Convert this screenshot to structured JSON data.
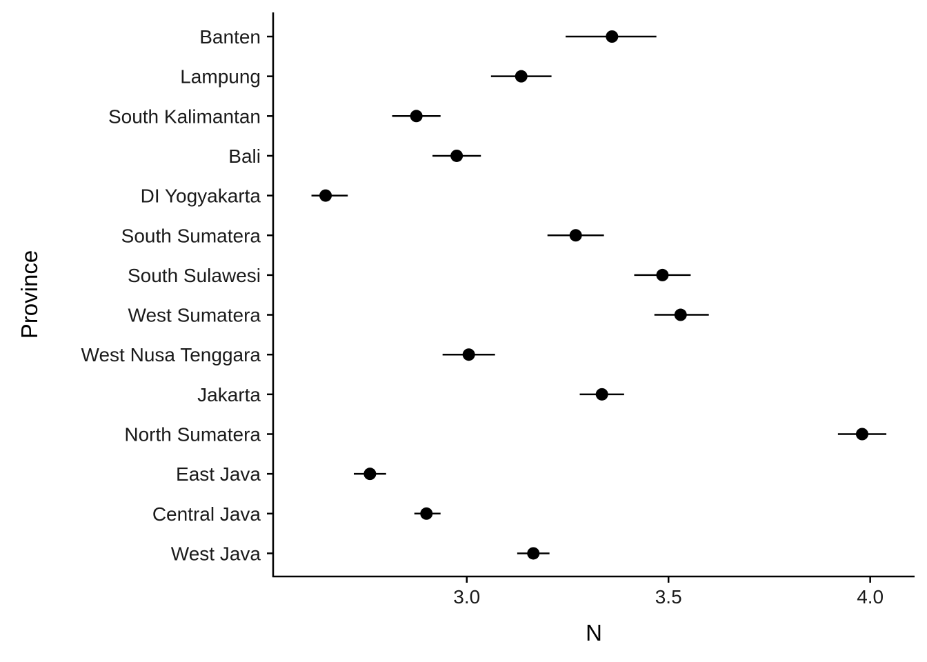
{
  "chart_data": {
    "type": "scatter",
    "variant": "point-range",
    "orientation": "horizontal",
    "title": "",
    "xlabel": "N",
    "ylabel": "Province",
    "xlim": [
      2.52,
      4.11
    ],
    "x_ticks": [
      3.0,
      3.5,
      4.0
    ],
    "x_tick_labels": [
      "3.0",
      "3.5",
      "4.0"
    ],
    "grid": false,
    "legend": "none",
    "point_color": "#000000",
    "categories": [
      "Banten",
      "Lampung",
      "South Kalimantan",
      "Bali",
      "DI Yogyakarta",
      "South Sumatera",
      "South Sulawesi",
      "West Sumatera",
      "West Nusa Tenggara",
      "Jakarta",
      "North Sumatera",
      "East Java",
      "Central Java",
      "West Java"
    ],
    "values": [
      3.36,
      3.135,
      2.875,
      2.975,
      2.65,
      3.27,
      3.485,
      3.53,
      3.005,
      3.335,
      3.98,
      2.76,
      2.9,
      3.165
    ],
    "lower": [
      3.245,
      3.06,
      2.815,
      2.915,
      2.615,
      3.2,
      3.415,
      3.465,
      2.94,
      3.28,
      3.92,
      2.72,
      2.87,
      3.125
    ],
    "upper": [
      3.47,
      3.21,
      2.935,
      3.035,
      2.705,
      3.34,
      3.555,
      3.6,
      3.07,
      3.39,
      4.04,
      2.8,
      2.935,
      3.205
    ]
  }
}
